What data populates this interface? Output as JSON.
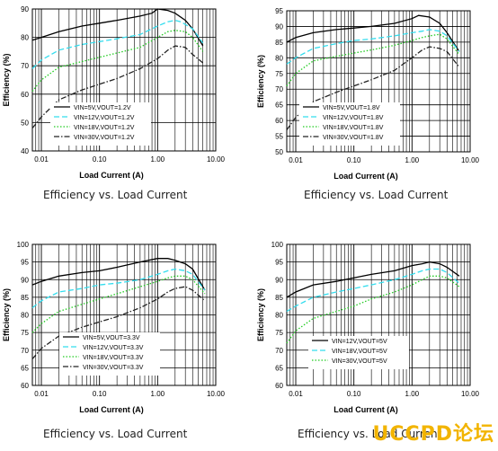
{
  "captions": [
    "Efficiency vs. Load Current",
    "Efficiency vs. Load Current",
    "Efficiency vs. Load Current",
    "Efficiency vs. Load Current"
  ],
  "watermark": "UCCPD论坛",
  "chart_data": [
    {
      "type": "line",
      "xlabel": "Load Current (A)",
      "ylabel": "Efficiency (%)",
      "xscale": "log",
      "xlim": [
        0.007,
        10
      ],
      "ylim": [
        40,
        90
      ],
      "yticks": [
        40,
        50,
        60,
        70,
        80,
        90
      ],
      "xticks": [
        "0.01",
        "0.10",
        "1.00",
        "10.00"
      ],
      "legend_placement": "center-left",
      "series": [
        {
          "name": "VIN=5V,VOUT=1.2V",
          "color": "#000000",
          "dash": "solid",
          "x": [
            0.007,
            0.01,
            0.02,
            0.05,
            0.1,
            0.2,
            0.5,
            0.8,
            1,
            1.5,
            2,
            3,
            4,
            6
          ],
          "y": [
            79,
            80,
            82,
            84,
            85,
            86,
            87.5,
            88.5,
            90,
            89.5,
            88.5,
            86,
            83,
            77
          ]
        },
        {
          "name": "VIN=12V,VOUT=1.2V",
          "color": "#33ddee",
          "dash": "dash",
          "x": [
            0.007,
            0.01,
            0.02,
            0.05,
            0.1,
            0.2,
            0.5,
            1,
            1.5,
            2,
            2.5,
            4,
            6
          ],
          "y": [
            69,
            72,
            75.5,
            77.5,
            78.5,
            79.5,
            81,
            84,
            85.5,
            86,
            85.5,
            83,
            78
          ]
        },
        {
          "name": "VIN=18V,VOUT=1.2V",
          "color": "#22cc22",
          "dash": "dot",
          "x": [
            0.007,
            0.01,
            0.02,
            0.05,
            0.1,
            0.2,
            0.5,
            1,
            1.5,
            2,
            3,
            4,
            6
          ],
          "y": [
            61,
            65,
            69.5,
            71.5,
            73,
            74.5,
            76.5,
            80,
            82,
            82.5,
            82,
            80,
            75
          ]
        },
        {
          "name": "VIN=30V,VOUT=1.2V",
          "color": "#222222",
          "dash": "dashdot",
          "x": [
            0.007,
            0.01,
            0.02,
            0.05,
            0.1,
            0.2,
            0.5,
            1,
            1.5,
            2,
            3,
            4,
            6
          ],
          "y": [
            48,
            52,
            58,
            61.5,
            63.5,
            65.5,
            69,
            72.5,
            75.5,
            77,
            76.5,
            74,
            71
          ]
        }
      ]
    },
    {
      "type": "line",
      "xlabel": "Load Current (A)",
      "ylabel": "Efficiency (%)",
      "xscale": "log",
      "xlim": [
        0.007,
        10
      ],
      "ylim": [
        50,
        95
      ],
      "yticks": [
        50,
        55,
        60,
        65,
        70,
        75,
        80,
        85,
        90,
        95
      ],
      "xticks": [
        "0.01",
        "0.10",
        "1.00",
        "10.00"
      ],
      "legend_placement": "center-left",
      "series": [
        {
          "name": "VIN=5V,VOUT=1.8V",
          "color": "#000000",
          "dash": "solid",
          "x": [
            0.007,
            0.01,
            0.02,
            0.05,
            0.1,
            0.2,
            0.5,
            1,
            1.3,
            2,
            3,
            4,
            6.5
          ],
          "y": [
            85,
            86.5,
            88,
            89,
            89.5,
            90,
            91,
            92.5,
            93.5,
            93,
            91,
            88,
            82
          ]
        },
        {
          "name": "VIN=12V,VOUT=1.8V",
          "color": "#33ddee",
          "dash": "dash",
          "x": [
            0.007,
            0.01,
            0.02,
            0.05,
            0.1,
            0.2,
            0.5,
            1,
            1.5,
            2,
            3,
            4,
            6.5
          ],
          "y": [
            78,
            80,
            83,
            84.5,
            85.5,
            86,
            87,
            88,
            88.5,
            89,
            88.5,
            87,
            82
          ]
        },
        {
          "name": "VIN=18V,VOUT=1.8V",
          "color": "#22cc22",
          "dash": "dot",
          "x": [
            0.007,
            0.01,
            0.02,
            0.05,
            0.1,
            0.2,
            0.5,
            1,
            1.5,
            2,
            3,
            4,
            6.5
          ],
          "y": [
            71,
            75,
            79,
            80.5,
            81.5,
            82.5,
            84,
            85.5,
            86.5,
            87,
            87.5,
            86,
            81
          ]
        },
        {
          "name": "VIN=30V,VOUT=1.8V",
          "color": "#222222",
          "dash": "dashdot",
          "x": [
            0.007,
            0.01,
            0.02,
            0.05,
            0.1,
            0.2,
            0.5,
            1,
            1.5,
            2,
            3,
            4,
            6.5
          ],
          "y": [
            57,
            61,
            66,
            69,
            71,
            73,
            76,
            80,
            82.5,
            83.5,
            83,
            82,
            77
          ]
        }
      ]
    },
    {
      "type": "line",
      "xlabel": "Load Current (A)",
      "ylabel": "Efficiency (%)",
      "xscale": "log",
      "xlim": [
        0.007,
        10
      ],
      "ylim": [
        60,
        100
      ],
      "yticks": [
        60,
        65,
        70,
        75,
        80,
        85,
        90,
        95,
        100
      ],
      "xticks": [
        "0.01",
        "0.10",
        "1.00",
        "10.00"
      ],
      "legend_placement": "bottom-center",
      "series": [
        {
          "name": "VIN=5V,VOUT=3.3V",
          "color": "#000000",
          "dash": "solid",
          "x": [
            0.007,
            0.01,
            0.02,
            0.05,
            0.1,
            0.2,
            0.5,
            1,
            1.5,
            2,
            3,
            4,
            6.5
          ],
          "y": [
            88.5,
            89.5,
            91,
            92,
            92.5,
            93.5,
            95,
            96,
            96,
            95.5,
            94.5,
            93,
            87
          ]
        },
        {
          "name": "VIN=12V,VOUT=3.3V",
          "color": "#33ddee",
          "dash": "dash",
          "x": [
            0.007,
            0.01,
            0.02,
            0.05,
            0.1,
            0.2,
            0.5,
            1,
            1.5,
            2,
            3,
            4,
            6.5
          ],
          "y": [
            82,
            84,
            86.5,
            87.5,
            88.5,
            89,
            90,
            91.5,
            92.5,
            93,
            92.5,
            91.5,
            87
          ]
        },
        {
          "name": "VIN=18V,VOUT=3.3V",
          "color": "#22cc22",
          "dash": "dot",
          "x": [
            0.007,
            0.01,
            0.02,
            0.05,
            0.1,
            0.2,
            0.5,
            1,
            1.5,
            2,
            3,
            4,
            6.5
          ],
          "y": [
            75,
            77.5,
            81,
            83,
            84.5,
            86,
            88,
            89.5,
            90.5,
            91,
            91,
            90,
            86
          ]
        },
        {
          "name": "VIN=30V,VOUT=3.3V",
          "color": "#222222",
          "dash": "dashdot",
          "x": [
            0.007,
            0.01,
            0.02,
            0.05,
            0.1,
            0.2,
            0.5,
            1,
            1.5,
            2,
            3,
            4,
            6.5
          ],
          "y": [
            67.5,
            70.5,
            74,
            76.5,
            78,
            79.5,
            82,
            84.5,
            86.5,
            87.5,
            88,
            87,
            84
          ]
        }
      ]
    },
    {
      "type": "line",
      "xlabel": "Load Current (A)",
      "ylabel": "Efficiency (%)",
      "xscale": "log",
      "xlim": [
        0.007,
        10
      ],
      "ylim": [
        60,
        100
      ],
      "yticks": [
        60,
        65,
        70,
        75,
        80,
        85,
        90,
        95,
        100
      ],
      "xticks": [
        "0.01",
        "0.10",
        "1.00",
        "10.00"
      ],
      "legend_placement": "bottom-center",
      "series": [
        {
          "name": "VIN=12V,VOUT=5V",
          "color": "#000000",
          "dash": "solid",
          "x": [
            0.007,
            0.01,
            0.02,
            0.05,
            0.1,
            0.2,
            0.5,
            1,
            1.5,
            2,
            3,
            4,
            6.5
          ],
          "y": [
            85,
            86.5,
            88.5,
            89.5,
            90.5,
            91.5,
            92.5,
            94,
            94.5,
            95,
            94.5,
            93.5,
            91
          ]
        },
        {
          "name": "VIN=18V,VOUT=5V",
          "color": "#33ddee",
          "dash": "dash",
          "x": [
            0.007,
            0.01,
            0.02,
            0.05,
            0.1,
            0.2,
            0.5,
            1,
            1.5,
            2,
            3,
            4,
            6.5
          ],
          "y": [
            81,
            82.5,
            85,
            86.5,
            87.5,
            88.5,
            90,
            91.5,
            92.5,
            93,
            93,
            92,
            89
          ]
        },
        {
          "name": "VIN=30V,VOUT=5V",
          "color": "#22cc22",
          "dash": "dot",
          "x": [
            0.007,
            0.01,
            0.02,
            0.05,
            0.1,
            0.2,
            0.5,
            1,
            1.5,
            2,
            3,
            4,
            6.5
          ],
          "y": [
            72,
            75.5,
            79,
            81,
            82.5,
            84.5,
            86.5,
            88.5,
            90,
            91,
            91,
            90.5,
            88
          ]
        }
      ]
    }
  ]
}
